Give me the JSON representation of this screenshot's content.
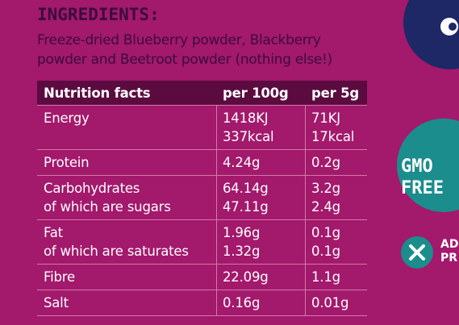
{
  "ingredients": {
    "title": "INGREDIENTS:",
    "lines": [
      "Freeze-dried Blueberry powder, Blackberry",
      "powder and Beetroot powder (nothing else!)"
    ]
  },
  "table": {
    "header": [
      "Nutrition facts",
      "per 100g",
      "per 5g"
    ],
    "rows": [
      [
        [
          "Energy"
        ],
        [
          "1418KJ",
          "337kcal"
        ],
        [
          "71KJ",
          "17kcal"
        ]
      ],
      [
        [
          "Protein"
        ],
        [
          "4.24g"
        ],
        [
          "0.2g"
        ]
      ],
      [
        [
          "Carbohydrates",
          "of which are sugars"
        ],
        [
          "64.14g",
          "47.11g"
        ],
        [
          "3.2g",
          "2.4g"
        ]
      ],
      [
        [
          "Fat",
          "of which are saturates"
        ],
        [
          "1.96g",
          "1.32g"
        ],
        [
          "0.1g",
          "0.1g"
        ]
      ],
      [
        [
          "Fibre"
        ],
        [
          "22.09g"
        ],
        [
          "1.1g"
        ]
      ],
      [
        [
          "Salt"
        ],
        [
          "0.16g"
        ],
        [
          "0.01g"
        ]
      ]
    ]
  },
  "badges": {
    "gmo": [
      "GMO",
      "FREE"
    ],
    "additives": [
      "AD",
      "PR"
    ]
  }
}
